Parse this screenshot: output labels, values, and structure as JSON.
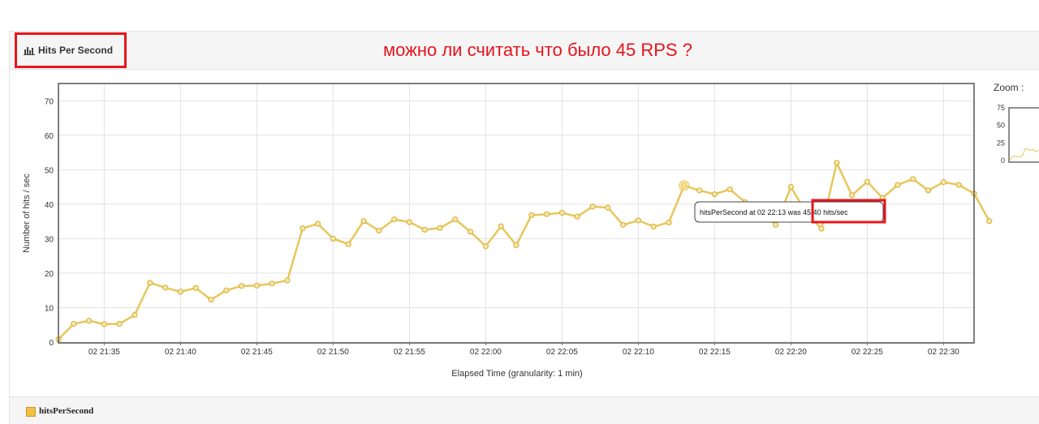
{
  "panel": {
    "title": "Hits Per Second",
    "annotation": "можно ли считать что было 45 RPS ?",
    "zoom_label": "Zoom :"
  },
  "tooltip": {
    "text_prefix": "hitsPerSecond at 02 22:13 wa",
    "text_value": "s 45.40 hits/sec"
  },
  "legend": {
    "label": "hitsPerSecond"
  },
  "colors": {
    "series": "#e8c65a",
    "point_fill": "#f7e9a8",
    "highlight": "#e8161a"
  },
  "chart_data": {
    "type": "line",
    "xlabel": "Elapsed Time (granularity: 1 min)",
    "ylabel": "Number of hits / sec",
    "ylim": [
      0,
      75
    ],
    "yticks": [
      0,
      10,
      20,
      30,
      40,
      50,
      60,
      70
    ],
    "xticks": [
      "02 21:35",
      "02 21:40",
      "02 21:45",
      "02 21:50",
      "02 21:55",
      "02 22:00",
      "02 22:05",
      "02 22:10",
      "02 22:15",
      "02 22:20",
      "02 22:25",
      "02 22:30"
    ],
    "x_start": "02 21:32",
    "x_step_minutes": 1,
    "highlight_x": "02 22:13",
    "series": [
      {
        "name": "hitsPerSecond",
        "values": [
          0.8,
          5.3,
          6.2,
          5.2,
          5.3,
          7.9,
          17.2,
          15.8,
          14.6,
          15.7,
          12.3,
          15.0,
          16.3,
          16.4,
          17.0,
          17.9,
          33.0,
          34.3,
          30.0,
          28.4,
          35.1,
          32.3,
          35.6,
          34.8,
          32.6,
          33.1,
          35.6,
          32.0,
          27.8,
          33.6,
          28.1,
          36.8,
          37.1,
          37.5,
          36.4,
          39.3,
          39.0,
          34.0,
          35.3,
          33.5,
          34.7,
          45.4,
          44.0,
          42.9,
          44.3,
          40.6,
          38.0,
          34.0,
          45.0,
          37.5,
          32.9,
          52.0,
          42.6,
          46.5,
          41.8,
          45.6,
          47.3,
          44.0,
          46.4,
          45.6,
          43.1,
          35.1
        ]
      }
    ],
    "zoom": {
      "yticks": [
        0,
        25,
        50,
        75
      ]
    }
  }
}
